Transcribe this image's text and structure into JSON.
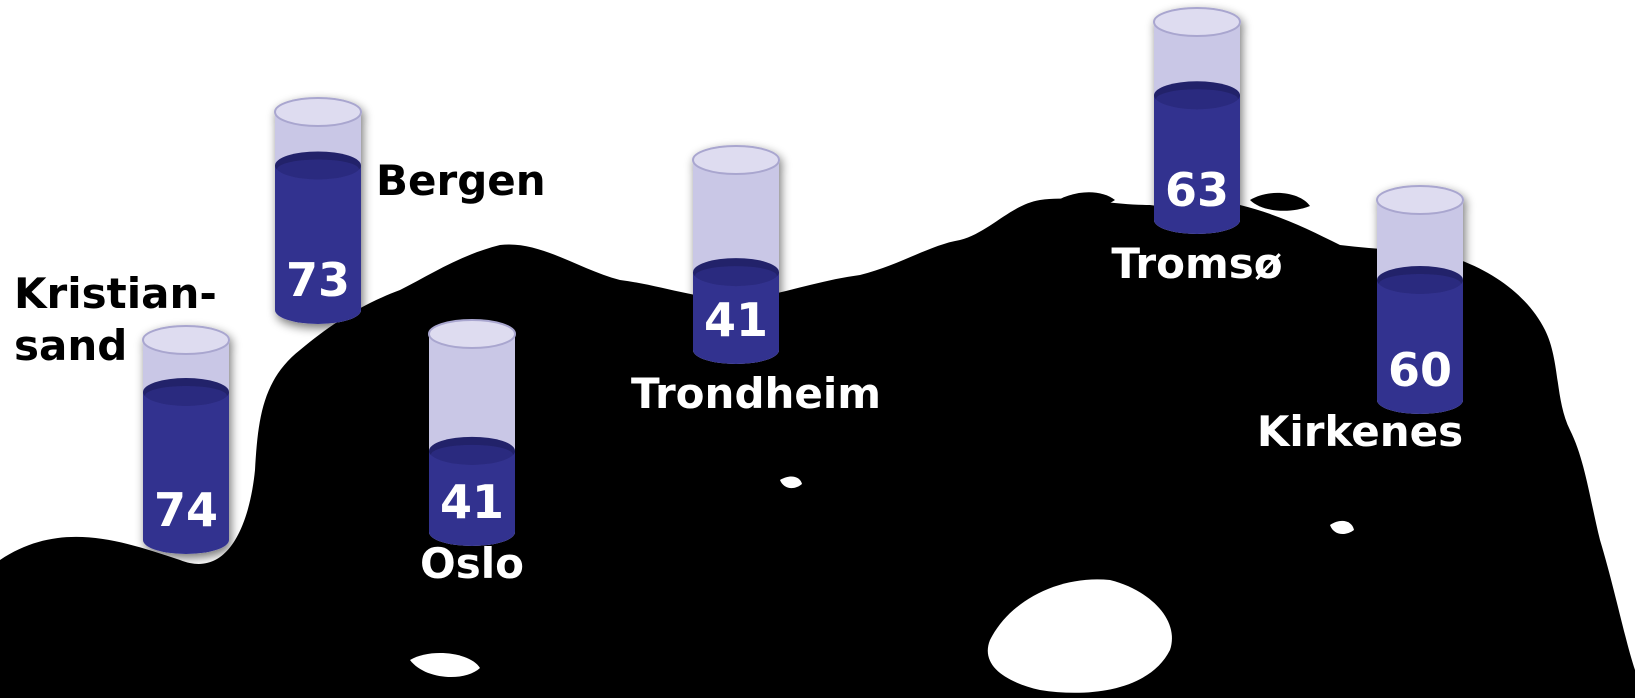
{
  "cities": [
    {
      "id": "kristiansand",
      "name": [
        "Kristian-",
        "sand"
      ],
      "value": 74,
      "fill": 0.74
    },
    {
      "id": "bergen",
      "name": [
        "Bergen"
      ],
      "value": 73,
      "fill": 0.73
    },
    {
      "id": "oslo",
      "name": [
        "Oslo"
      ],
      "value": 41,
      "fill": 0.41
    },
    {
      "id": "trondheim",
      "name": [
        "Trondheim"
      ],
      "value": 41,
      "fill": 0.41
    },
    {
      "id": "tromso",
      "name": [
        "Tromsø"
      ],
      "value": 63,
      "fill": 0.63
    },
    {
      "id": "kirkenes",
      "name": [
        "Kirkenes"
      ],
      "value": 60,
      "fill": 0.6
    }
  ],
  "colors": {
    "land": "#000000",
    "sea": "#ffffff",
    "liquid": "#33338f",
    "liquid_top": "#23236b",
    "glass": "#c9c7e6",
    "glass_rim": "#dedcf0",
    "label_on_land": "#ffffff",
    "label_on_sea": "#000000"
  }
}
